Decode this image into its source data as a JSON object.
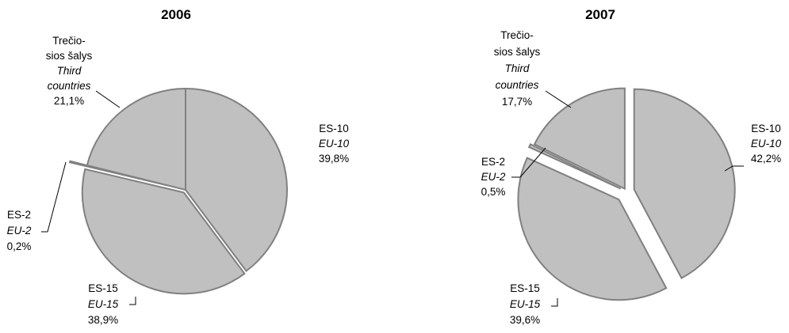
{
  "chart_data": [
    {
      "type": "pie",
      "title": "2006",
      "slices": [
        {
          "label": "ES-10",
          "label_en": "EU-10",
          "value": 39.8,
          "value_label": "39,8%"
        },
        {
          "label": "ES-15",
          "label_en": "EU-15",
          "value": 38.9,
          "value_label": "38,9%"
        },
        {
          "label": "ES-2",
          "label_en": "EU-2",
          "value": 0.2,
          "value_label": "0,2%"
        },
        {
          "label_lines": [
            "Trečio-",
            "sios šalys"
          ],
          "label_en_lines": [
            "Third",
            "countries"
          ],
          "value": 21.1,
          "value_label": "21,1%"
        }
      ],
      "colors": {
        "fill": "#c0c0c0",
        "stroke": "#808080"
      }
    },
    {
      "type": "pie",
      "title": "2007",
      "slices": [
        {
          "label": "ES-10",
          "label_en": "EU-10",
          "value": 42.2,
          "value_label": "42,2%"
        },
        {
          "label": "ES-15",
          "label_en": "EU-15",
          "value": 39.6,
          "value_label": "39,6%"
        },
        {
          "label": "ES-2",
          "label_en": "EU-2",
          "value": 0.5,
          "value_label": "0,5%"
        },
        {
          "label_lines": [
            "Trečio-",
            "sios šalys"
          ],
          "label_en_lines": [
            "Third",
            "countries"
          ],
          "value": 17.7,
          "value_label": "17,7%"
        }
      ],
      "colors": {
        "fill": "#c0c0c0",
        "stroke": "#808080"
      }
    }
  ]
}
